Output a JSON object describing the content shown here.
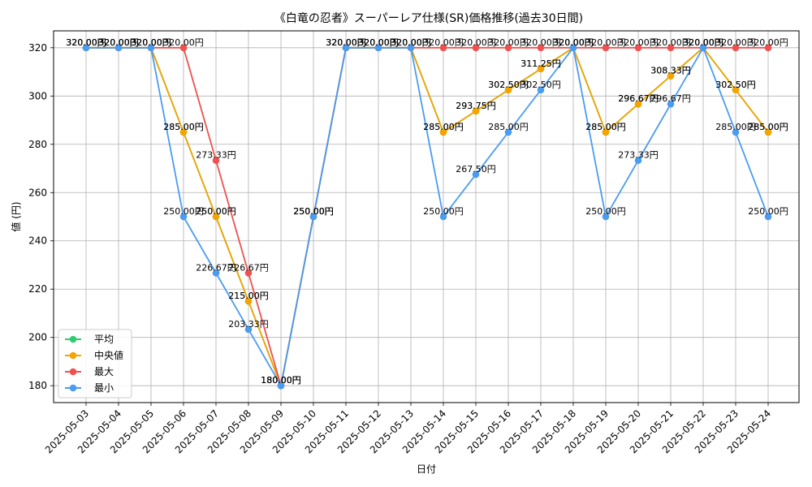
{
  "chart_data": {
    "type": "line",
    "title": "《白竜の忍者》スーパーレア仕様(SR)価格推移(過去30日間)",
    "xlabel": "日付",
    "ylabel": "値 (円)",
    "ylim": [
      173,
      327
    ],
    "yticks": [
      180,
      200,
      220,
      240,
      260,
      280,
      300,
      320
    ],
    "grid": true,
    "legend_position": "lower-left",
    "categories": [
      "2025-05-03",
      "2025-05-04",
      "2025-05-05",
      "2025-05-06",
      "2025-05-07",
      "2025-05-08",
      "2025-05-09",
      "2025-05-10",
      "2025-05-11",
      "2025-05-12",
      "2025-05-13",
      "2025-05-14",
      "2025-05-15",
      "2025-05-16",
      "2025-05-17",
      "2025-05-18",
      "2025-05-19",
      "2025-05-20",
      "2025-05-21",
      "2025-05-22",
      "2025-05-23",
      "2025-05-24"
    ],
    "series": [
      {
        "name": "平均",
        "color": "#2ecc71",
        "values": [
          320,
          320,
          320,
          285,
          250,
          215,
          180,
          250,
          320,
          320,
          320,
          285,
          293.75,
          302.5,
          311.25,
          320,
          285,
          296.67,
          308.33,
          320,
          302.5,
          285
        ]
      },
      {
        "name": "中央値",
        "color": "#f5a300",
        "values": [
          320,
          320,
          320,
          285,
          250,
          215,
          180,
          250,
          320,
          320,
          320,
          285,
          293.75,
          302.5,
          311.25,
          320,
          285,
          296.67,
          308.33,
          320,
          302.5,
          285
        ]
      },
      {
        "name": "最大",
        "color": "#f05050",
        "values": [
          320,
          320,
          320,
          320,
          273.33,
          226.67,
          180,
          250,
          320,
          320,
          320,
          320,
          320,
          320,
          320,
          320,
          320,
          320,
          320,
          320,
          320,
          320
        ]
      },
      {
        "name": "最小",
        "color": "#4a9cf0",
        "values": [
          320,
          320,
          320,
          250,
          226.67,
          203.33,
          180,
          250,
          320,
          320,
          320,
          250,
          267.5,
          285,
          302.5,
          320,
          250,
          273.33,
          296.67,
          320,
          285,
          250
        ]
      }
    ],
    "unit_suffix": "円"
  }
}
